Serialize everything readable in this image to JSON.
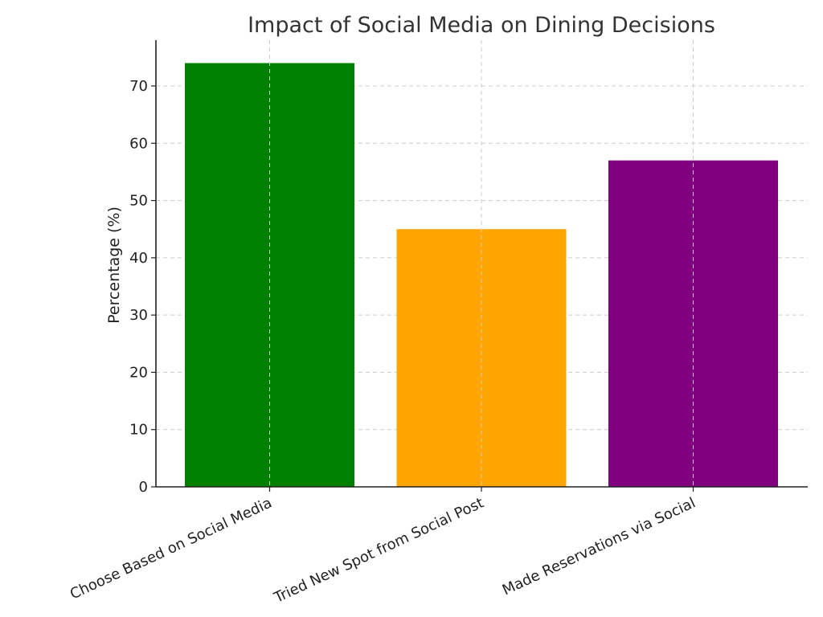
{
  "chart_data": {
    "type": "bar",
    "title": "Impact of Social Media on Dining Decisions",
    "xlabel": "",
    "ylabel": "Percentage (%)",
    "categories": [
      "Choose Based on Social Media",
      "Tried New Spot from Social Post",
      "Made Reservations via Social"
    ],
    "values": [
      74,
      45,
      57
    ],
    "colors": [
      "#008000",
      "#FFA500",
      "#800080"
    ],
    "ylim": [
      0,
      78
    ],
    "yticks": [
      0,
      10,
      20,
      30,
      40,
      50,
      60,
      70
    ],
    "grid": true,
    "legend": "none"
  }
}
